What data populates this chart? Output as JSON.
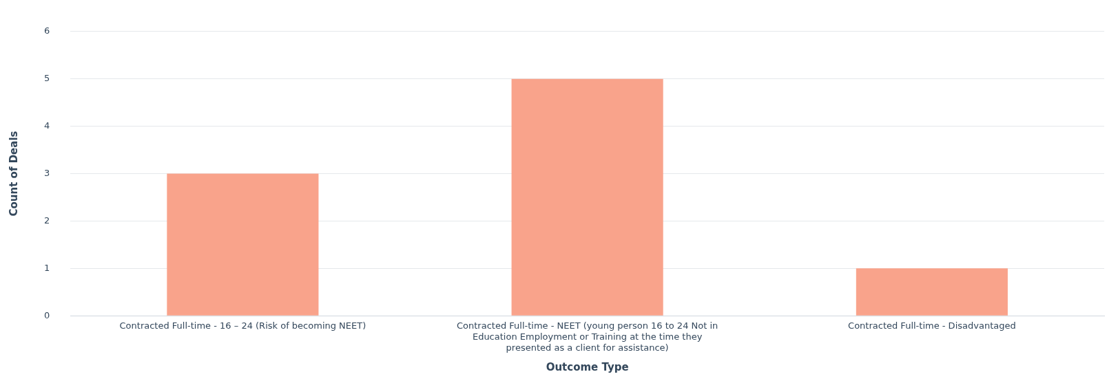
{
  "chart_data": {
    "type": "bar",
    "xlabel": "Outcome Type",
    "ylabel": "Count of Deals",
    "categories": [
      "Contracted Full-time - 16 – 24 (Risk of becoming NEET)",
      "Contracted Full-time - NEET (young person 16 to 24 Not in Education Employment or Training at the time they presented as a client for assistance)",
      "Contracted Full-time - Disadvantaged"
    ],
    "values": [
      3,
      5,
      1
    ],
    "color": "#f9a38b",
    "ylim": [
      0,
      6
    ],
    "yticks": [
      0,
      1,
      2,
      3,
      4,
      5,
      6
    ],
    "grid": "y",
    "legend": false
  }
}
